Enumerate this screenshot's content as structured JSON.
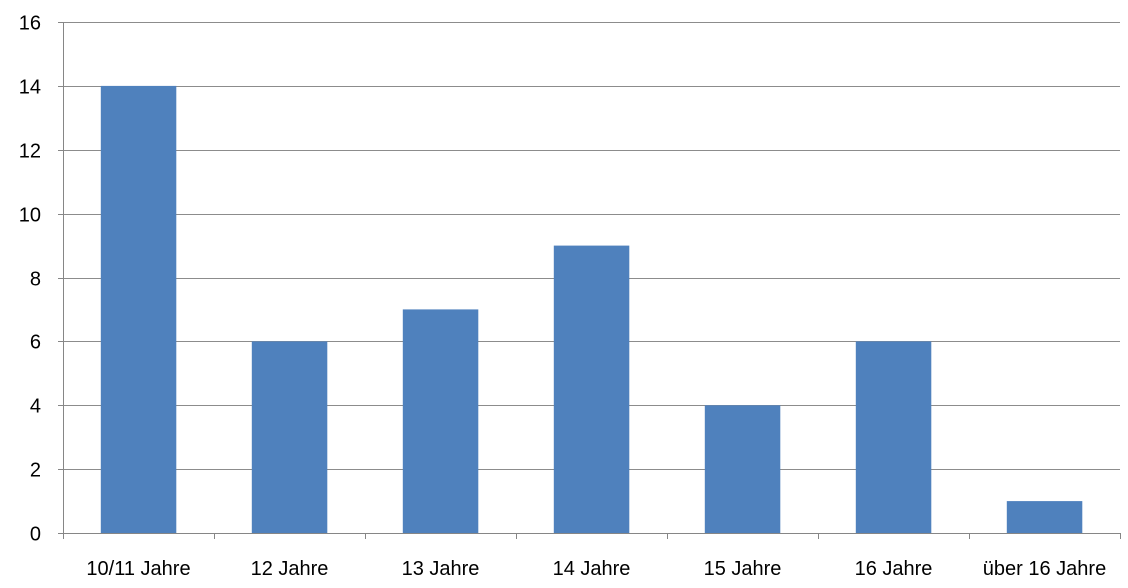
{
  "chart_data": {
    "type": "bar",
    "title": "",
    "xlabel": "",
    "ylabel": "",
    "categories": [
      "10/11 Jahre",
      "12 Jahre",
      "13 Jahre",
      "14 Jahre",
      "15 Jahre",
      "16 Jahre",
      "über 16 Jahre"
    ],
    "values": [
      14,
      6,
      7,
      9,
      4,
      6,
      1
    ],
    "ylim": [
      0,
      16
    ],
    "yticks": [
      0,
      2,
      4,
      6,
      8,
      10,
      12,
      14,
      16
    ],
    "grid": true,
    "legend": "none",
    "bar_color": "#4f81bd",
    "grid_color": "#8c8c8c",
    "axis_color": "#868686"
  }
}
